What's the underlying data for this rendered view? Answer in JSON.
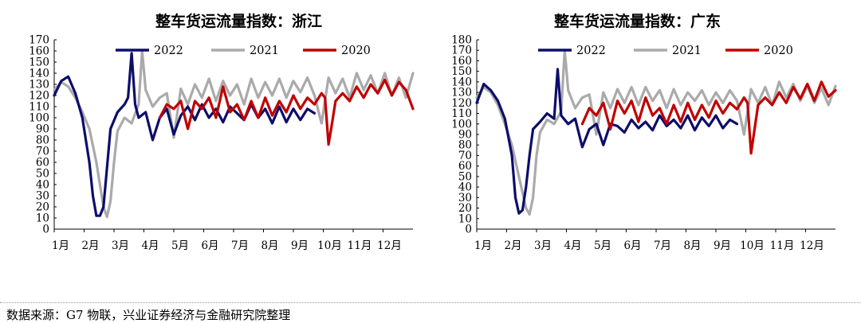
{
  "source": "数据来源：G7 物联，兴业证券经济与金融研究院整理",
  "colors": {
    "2022": "#0d0d6b",
    "2021": "#aaaaaa",
    "2020": "#c00000"
  },
  "chart_data": [
    {
      "type": "line",
      "title": "整车货运流量指数：浙江",
      "ylim": [
        0,
        170
      ],
      "yticks": [
        0,
        10,
        20,
        30,
        40,
        50,
        60,
        70,
        80,
        90,
        100,
        110,
        120,
        130,
        140,
        150,
        160,
        170
      ],
      "xlabels": [
        "1月",
        "2月",
        "3月",
        "4月",
        "5月",
        "6月",
        "7月",
        "8月",
        "9月",
        "10月",
        "11月",
        "12月"
      ],
      "x_unit": "week",
      "xlim": [
        1,
        52
      ],
      "legend": [
        "2022",
        "2021",
        "2020"
      ],
      "legend_position": "top",
      "series": [
        {
          "name": "2022",
          "color": "#0d0d6b",
          "x": [
            1,
            2,
            3,
            4,
            5,
            6,
            6.5,
            7,
            7.5,
            8,
            8.5,
            9,
            10,
            11,
            11.5,
            12,
            12.5,
            13,
            14,
            15,
            16,
            17,
            18,
            19,
            20,
            21,
            22,
            23,
            24,
            25,
            26,
            27,
            28,
            29,
            30,
            31,
            32,
            33,
            34,
            35,
            36,
            37,
            38
          ],
          "y": [
            120,
            133,
            137,
            122,
            100,
            60,
            30,
            12,
            12,
            20,
            55,
            90,
            105,
            112,
            118,
            158,
            112,
            100,
            105,
            80,
            100,
            108,
            85,
            102,
            110,
            98,
            112,
            100,
            108,
            96,
            110,
            104,
            98,
            112,
            100,
            108,
            95,
            110,
            96,
            108,
            98,
            108,
            104
          ]
        },
        {
          "name": "2021",
          "color": "#aaaaaa",
          "x": [
            1,
            2,
            3,
            4,
            5,
            6,
            7,
            8,
            8.5,
            9,
            9.5,
            10,
            11,
            12,
            13,
            13.5,
            14,
            15,
            16,
            17,
            18,
            19,
            20,
            21,
            22,
            23,
            24,
            25,
            26,
            27,
            28,
            29,
            30,
            31,
            32,
            33,
            34,
            35,
            36,
            37,
            38,
            39,
            40,
            41,
            42,
            43,
            44,
            45,
            46,
            47,
            48,
            49,
            50,
            51,
            52
          ],
          "y": [
            125,
            132,
            128,
            118,
            105,
            90,
            60,
            20,
            11,
            25,
            60,
            88,
            100,
            95,
            112,
            160,
            125,
            110,
            118,
            122,
            82,
            126,
            112,
            130,
            118,
            135,
            115,
            133,
            120,
            130,
            112,
            135,
            118,
            132,
            120,
            135,
            118,
            133,
            123,
            136,
            120,
            95,
            136,
            122,
            135,
            118,
            140,
            125,
            138,
            122,
            140,
            120,
            136,
            118,
            140
          ]
        },
        {
          "name": "2020",
          "color": "#c00000",
          "x": [
            16,
            17,
            18,
            19,
            20,
            21,
            22,
            23,
            24,
            25,
            26,
            27,
            28,
            29,
            30,
            31,
            32,
            33,
            34,
            35,
            36,
            37,
            38,
            39,
            39.5,
            40,
            40.5,
            41,
            42,
            43,
            44,
            45,
            46,
            47,
            48,
            49,
            50,
            51,
            52
          ],
          "y": [
            100,
            112,
            108,
            115,
            90,
            115,
            108,
            118,
            100,
            128,
            105,
            112,
            98,
            115,
            100,
            118,
            102,
            115,
            105,
            120,
            108,
            118,
            112,
            122,
            118,
            76,
            95,
            115,
            122,
            115,
            128,
            118,
            130,
            122,
            134,
            120,
            132,
            125,
            108
          ]
        }
      ]
    },
    {
      "type": "line",
      "title": "整车货运流量指数：广东",
      "ylim": [
        0,
        180
      ],
      "yticks": [
        0,
        10,
        20,
        30,
        40,
        50,
        60,
        70,
        80,
        90,
        100,
        110,
        120,
        130,
        140,
        150,
        160,
        170,
        180
      ],
      "xlabels": [
        "1月",
        "2月",
        "3月",
        "4月",
        "5月",
        "6月",
        "7月",
        "8月",
        "9月",
        "10月",
        "11月",
        "12月"
      ],
      "x_unit": "week",
      "xlim": [
        1,
        52
      ],
      "legend": [
        "2022",
        "2021",
        "2020"
      ],
      "legend_position": "top",
      "series": [
        {
          "name": "2022",
          "color": "#0d0d6b",
          "x": [
            1,
            2,
            3,
            4,
            5,
            6,
            6.5,
            7,
            7.5,
            8,
            8.5,
            9,
            10,
            11,
            12,
            12.5,
            13,
            14,
            15,
            16,
            17,
            18,
            19,
            20,
            21,
            22,
            23,
            24,
            25,
            26,
            27,
            28,
            29,
            30,
            31,
            32,
            33,
            34,
            35,
            36,
            37,
            38
          ],
          "y": [
            120,
            138,
            132,
            122,
            105,
            70,
            30,
            15,
            18,
            40,
            70,
            95,
            102,
            110,
            105,
            152,
            108,
            100,
            105,
            78,
            95,
            100,
            80,
            100,
            98,
            92,
            104,
            96,
            102,
            94,
            108,
            98,
            104,
            96,
            108,
            94,
            106,
            98,
            108,
            96,
            104,
            100
          ]
        },
        {
          "name": "2021",
          "color": "#aaaaaa",
          "x": [
            1,
            2,
            3,
            4,
            5,
            6,
            7,
            8,
            8.5,
            9,
            9.5,
            10,
            11,
            12,
            13,
            13.5,
            14,
            15,
            16,
            17,
            18,
            19,
            20,
            21,
            22,
            23,
            24,
            25,
            26,
            27,
            28,
            29,
            30,
            31,
            32,
            33,
            34,
            35,
            36,
            37,
            38,
            39,
            40,
            41,
            42,
            43,
            44,
            45,
            46,
            47,
            48,
            49,
            50,
            51,
            52
          ],
          "y": [
            125,
            135,
            130,
            118,
            100,
            80,
            50,
            20,
            14,
            30,
            70,
            92,
            104,
            100,
            112,
            170,
            132,
            115,
            125,
            128,
            90,
            130,
            115,
            133,
            120,
            135,
            118,
            135,
            122,
            132,
            115,
            133,
            118,
            130,
            122,
            132,
            118,
            130,
            120,
            132,
            122,
            90,
            133,
            120,
            135,
            118,
            140,
            125,
            138,
            122,
            136,
            120,
            134,
            118,
            136
          ]
        },
        {
          "name": "2020",
          "color": "#c00000",
          "x": [
            16,
            17,
            18,
            19,
            20,
            21,
            22,
            23,
            24,
            25,
            26,
            27,
            28,
            29,
            30,
            31,
            32,
            33,
            34,
            35,
            36,
            37,
            38,
            39,
            39.5,
            40,
            40.5,
            41,
            42,
            43,
            44,
            45,
            46,
            47,
            48,
            49,
            50,
            51,
            52
          ],
          "y": [
            100,
            115,
            108,
            120,
            95,
            122,
            110,
            122,
            102,
            125,
            108,
            115,
            100,
            118,
            102,
            120,
            104,
            118,
            106,
            122,
            110,
            120,
            114,
            125,
            120,
            72,
            95,
            118,
            125,
            118,
            130,
            120,
            135,
            124,
            138,
            122,
            140,
            126,
            132
          ]
        }
      ]
    }
  ]
}
